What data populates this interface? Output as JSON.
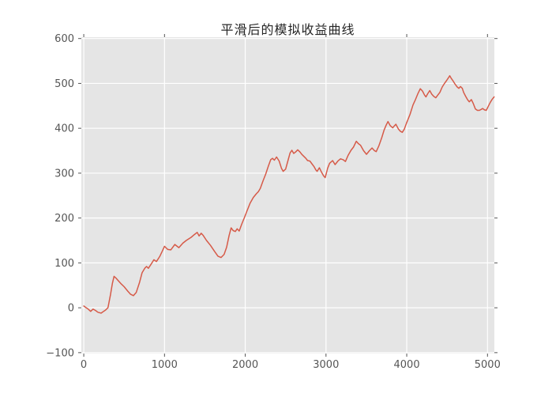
{
  "chart_data": {
    "type": "line",
    "title": "平滑后的模拟收益曲线",
    "xlabel": "",
    "ylabel": "",
    "legend": null,
    "grid": true,
    "x_ticks": [
      0,
      1000,
      2000,
      3000,
      4000,
      5000
    ],
    "y_ticks": [
      -100,
      0,
      100,
      200,
      300,
      400,
      500,
      600
    ],
    "xlim": [
      -30,
      5085
    ],
    "ylim": [
      -102,
      603
    ],
    "style": {
      "figure_bg": "#ffffff",
      "plot_bg": "#e5e5e5",
      "grid_color": "#ffffff",
      "line_color": "#d65a48",
      "tick_color": "#555555",
      "tick_label_color": "#555555",
      "title_color": "#262626"
    },
    "series": [
      {
        "points": [
          [
            0,
            4
          ],
          [
            30,
            0
          ],
          [
            55,
            -3
          ],
          [
            85,
            -8
          ],
          [
            115,
            -3
          ],
          [
            145,
            -6
          ],
          [
            175,
            -10
          ],
          [
            215,
            -12
          ],
          [
            245,
            -8
          ],
          [
            270,
            -5
          ],
          [
            300,
            0
          ],
          [
            330,
            28
          ],
          [
            355,
            55
          ],
          [
            375,
            70
          ],
          [
            400,
            66
          ],
          [
            430,
            60
          ],
          [
            465,
            53
          ],
          [
            500,
            47
          ],
          [
            545,
            37
          ],
          [
            580,
            30
          ],
          [
            615,
            27
          ],
          [
            650,
            34
          ],
          [
            690,
            56
          ],
          [
            722,
            78
          ],
          [
            755,
            88
          ],
          [
            778,
            92
          ],
          [
            800,
            88
          ],
          [
            830,
            96
          ],
          [
            869,
            107
          ],
          [
            900,
            103
          ],
          [
            940,
            114
          ],
          [
            972,
            126
          ],
          [
            1000,
            137
          ],
          [
            1040,
            130
          ],
          [
            1078,
            129
          ],
          [
            1128,
            141
          ],
          [
            1178,
            134
          ],
          [
            1228,
            144
          ],
          [
            1270,
            150
          ],
          [
            1330,
            157
          ],
          [
            1370,
            163
          ],
          [
            1405,
            168
          ],
          [
            1428,
            160
          ],
          [
            1455,
            166
          ],
          [
            1480,
            161
          ],
          [
            1520,
            150
          ],
          [
            1570,
            139
          ],
          [
            1618,
            126
          ],
          [
            1662,
            115
          ],
          [
            1700,
            112
          ],
          [
            1738,
            119
          ],
          [
            1770,
            135
          ],
          [
            1800,
            161
          ],
          [
            1825,
            178
          ],
          [
            1850,
            172
          ],
          [
            1877,
            170
          ],
          [
            1900,
            176
          ],
          [
            1925,
            171
          ],
          [
            1955,
            186
          ],
          [
            1990,
            201
          ],
          [
            2020,
            215
          ],
          [
            2060,
            233
          ],
          [
            2100,
            246
          ],
          [
            2137,
            254
          ],
          [
            2163,
            259
          ],
          [
            2186,
            266
          ],
          [
            2220,
            283
          ],
          [
            2254,
            298
          ],
          [
            2285,
            315
          ],
          [
            2315,
            330
          ],
          [
            2338,
            333
          ],
          [
            2360,
            329
          ],
          [
            2388,
            336
          ],
          [
            2420,
            327
          ],
          [
            2448,
            311
          ],
          [
            2470,
            304
          ],
          [
            2500,
            309
          ],
          [
            2530,
            329
          ],
          [
            2555,
            345
          ],
          [
            2577,
            351
          ],
          [
            2600,
            344
          ],
          [
            2623,
            347
          ],
          [
            2650,
            352
          ],
          [
            2678,
            347
          ],
          [
            2700,
            342
          ],
          [
            2723,
            338
          ],
          [
            2750,
            333
          ],
          [
            2772,
            328
          ],
          [
            2800,
            327
          ],
          [
            2825,
            321
          ],
          [
            2850,
            315
          ],
          [
            2875,
            307
          ],
          [
            2890,
            304
          ],
          [
            2918,
            312
          ],
          [
            2945,
            302
          ],
          [
            2970,
            294
          ],
          [
            2990,
            290
          ],
          [
            3020,
            311
          ],
          [
            3045,
            322
          ],
          [
            3082,
            328
          ],
          [
            3112,
            319
          ],
          [
            3148,
            327
          ],
          [
            3180,
            332
          ],
          [
            3212,
            330
          ],
          [
            3240,
            326
          ],
          [
            3275,
            340
          ],
          [
            3310,
            351
          ],
          [
            3340,
            358
          ],
          [
            3375,
            371
          ],
          [
            3400,
            366
          ],
          [
            3428,
            362
          ],
          [
            3465,
            350
          ],
          [
            3502,
            342
          ],
          [
            3538,
            350
          ],
          [
            3570,
            356
          ],
          [
            3600,
            350
          ],
          [
            3622,
            348
          ],
          [
            3655,
            361
          ],
          [
            3690,
            379
          ],
          [
            3720,
            396
          ],
          [
            3745,
            407
          ],
          [
            3768,
            415
          ],
          [
            3795,
            406
          ],
          [
            3826,
            401
          ],
          [
            3845,
            405
          ],
          [
            3865,
            409
          ],
          [
            3898,
            398
          ],
          [
            3922,
            393
          ],
          [
            3945,
            391
          ],
          [
            3970,
            398
          ],
          [
            4000,
            413
          ],
          [
            4040,
            431
          ],
          [
            4078,
            452
          ],
          [
            4108,
            464
          ],
          [
            4140,
            478
          ],
          [
            4168,
            488
          ],
          [
            4195,
            483
          ],
          [
            4220,
            474
          ],
          [
            4238,
            470
          ],
          [
            4260,
            477
          ],
          [
            4285,
            484
          ],
          [
            4310,
            476
          ],
          [
            4335,
            471
          ],
          [
            4360,
            468
          ],
          [
            4385,
            474
          ],
          [
            4410,
            480
          ],
          [
            4440,
            492
          ],
          [
            4468,
            500
          ],
          [
            4492,
            506
          ],
          [
            4515,
            512
          ],
          [
            4532,
            517
          ],
          [
            4552,
            511
          ],
          [
            4575,
            505
          ],
          [
            4600,
            498
          ],
          [
            4625,
            492
          ],
          [
            4645,
            489
          ],
          [
            4665,
            493
          ],
          [
            4688,
            489
          ],
          [
            4705,
            480
          ],
          [
            4730,
            471
          ],
          [
            4755,
            463
          ],
          [
            4775,
            459
          ],
          [
            4800,
            464
          ],
          [
            4822,
            456
          ],
          [
            4850,
            443
          ],
          [
            4875,
            440
          ],
          [
            4900,
            440
          ],
          [
            4922,
            442
          ],
          [
            4940,
            444
          ],
          [
            4962,
            441
          ],
          [
            4985,
            440
          ],
          [
            5010,
            449
          ],
          [
            5035,
            458
          ],
          [
            5060,
            465
          ],
          [
            5082,
            470
          ]
        ]
      }
    ]
  }
}
